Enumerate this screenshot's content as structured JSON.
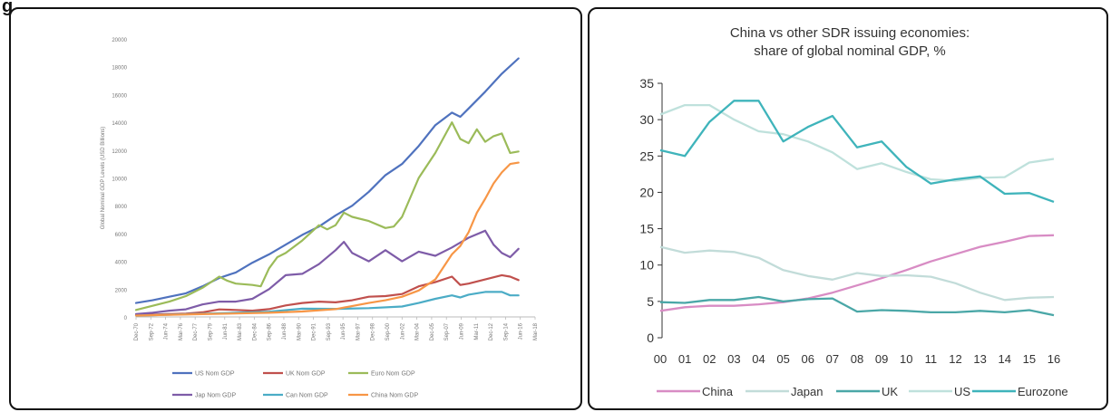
{
  "figure": {
    "caption": "g"
  },
  "chart_data": [
    {
      "type": "line",
      "title": "",
      "xlabel": "",
      "ylabel": "Global Nominal GDP Levels (USD Billions)",
      "ylim": [
        0,
        20000
      ],
      "yticks": [
        0,
        2000,
        4000,
        6000,
        8000,
        10000,
        12000,
        14000,
        16000,
        18000,
        20000
      ],
      "grid": false,
      "legend_position": "bottom",
      "categories": [
        "Dec-70",
        "Sep-72",
        "Jun-74",
        "Mar-76",
        "Dec-77",
        "Sep-79",
        "Jun-81",
        "Mar-83",
        "Dec-84",
        "Sep-86",
        "Jun-88",
        "Mar-90",
        "Dec-91",
        "Sep-93",
        "Jun-95",
        "Mar-97",
        "Dec-98",
        "Sep-00",
        "Jun-02",
        "Mar-04",
        "Dec-05",
        "Sep-07",
        "Jun-09",
        "Mar-11",
        "Dec-12",
        "Sep-14",
        "Jun-16",
        "Mar-18"
      ],
      "x_range": [
        1970,
        2018
      ],
      "series": [
        {
          "name": "US Nom GDP",
          "color": "#4f72be",
          "x": [
            1970,
            1972,
            1974,
            1976,
            1978,
            1980,
            1982,
            1984,
            1986,
            1988,
            1990,
            1992,
            1994,
            1996,
            1998,
            2000,
            2002,
            2004,
            2006,
            2008,
            2009,
            2010,
            2012,
            2014,
            2016
          ],
          "values": [
            1000,
            1200,
            1450,
            1700,
            2200,
            2800,
            3200,
            3900,
            4500,
            5200,
            5900,
            6500,
            7300,
            8000,
            9000,
            10200,
            11000,
            12300,
            13800,
            14700,
            14400,
            15000,
            16200,
            17500,
            18600
          ]
        },
        {
          "name": "UK Nom GDP",
          "color": "#c0504d",
          "x": [
            1970,
            1972,
            1974,
            1976,
            1978,
            1980,
            1982,
            1984,
            1986,
            1988,
            1990,
            1992,
            1994,
            1996,
            1998,
            2000,
            2002,
            2004,
            2006,
            2008,
            2009,
            2010,
            2012,
            2014,
            2015,
            2016
          ],
          "values": [
            130,
            160,
            200,
            240,
            330,
            540,
            500,
            450,
            560,
            830,
            1000,
            1100,
            1050,
            1200,
            1450,
            1500,
            1650,
            2200,
            2500,
            2900,
            2300,
            2400,
            2700,
            3000,
            2900,
            2650
          ]
        },
        {
          "name": "Euro Nom GDP",
          "color": "#9bbb59",
          "x": [
            1970,
            1972,
            1974,
            1976,
            1978,
            1980,
            1981,
            1982,
            1984,
            1985,
            1986,
            1987,
            1988,
            1990,
            1992,
            1993,
            1994,
            1995,
            1996,
            1998,
            2000,
            2001,
            2002,
            2004,
            2006,
            2008,
            2009,
            2010,
            2011,
            2012,
            2013,
            2014,
            2015,
            2016
          ],
          "values": [
            500,
            800,
            1100,
            1500,
            2100,
            2900,
            2600,
            2400,
            2300,
            2200,
            3500,
            4300,
            4600,
            5500,
            6600,
            6300,
            6600,
            7500,
            7200,
            6900,
            6400,
            6500,
            7200,
            10000,
            11800,
            14000,
            12800,
            12500,
            13500,
            12600,
            13000,
            13200,
            11800,
            11900
          ]
        },
        {
          "name": "Jap Nom GDP",
          "color": "#7e5ca8",
          "x": [
            1970,
            1972,
            1974,
            1976,
            1978,
            1980,
            1982,
            1984,
            1986,
            1988,
            1990,
            1992,
            1994,
            1995,
            1996,
            1998,
            2000,
            2002,
            2004,
            2006,
            2008,
            2010,
            2012,
            2013,
            2014,
            2015,
            2016
          ],
          "values": [
            200,
            300,
            450,
            550,
            900,
            1100,
            1100,
            1300,
            2000,
            3000,
            3100,
            3800,
            4800,
            5400,
            4600,
            4000,
            4800,
            4000,
            4700,
            4400,
            5000,
            5700,
            6200,
            5200,
            4600,
            4300,
            4900
          ]
        },
        {
          "name": "Can Nom GDP",
          "color": "#4bacc6",
          "x": [
            1970,
            1974,
            1978,
            1982,
            1986,
            1990,
            1994,
            1998,
            2002,
            2004,
            2006,
            2008,
            2009,
            2010,
            2012,
            2014,
            2015,
            2016
          ],
          "values": [
            90,
            160,
            230,
            300,
            380,
            590,
            580,
            630,
            750,
            1000,
            1300,
            1550,
            1400,
            1600,
            1800,
            1800,
            1550,
            1550
          ]
        },
        {
          "name": "China Nom GDP",
          "color": "#f79646",
          "x": [
            1970,
            1974,
            1978,
            1982,
            1986,
            1990,
            1994,
            1998,
            2000,
            2002,
            2004,
            2006,
            2008,
            2009,
            2010,
            2011,
            2012,
            2013,
            2014,
            2015,
            2016
          ],
          "values": [
            100,
            150,
            200,
            250,
            300,
            390,
            560,
            1000,
            1200,
            1450,
            1900,
            2700,
            4500,
            5100,
            6100,
            7500,
            8500,
            9600,
            10400,
            11000,
            11100
          ]
        }
      ]
    },
    {
      "type": "line",
      "title": "China vs other SDR issuing economies:",
      "subtitle": "share of global nominal GDP, %",
      "xlabel": "",
      "ylabel": "",
      "ylim": [
        0,
        35
      ],
      "yticks": [
        0,
        5,
        10,
        15,
        20,
        25,
        30,
        35
      ],
      "grid": false,
      "legend_position": "bottom",
      "categories": [
        "00",
        "01",
        "02",
        "03",
        "04",
        "05",
        "06",
        "07",
        "08",
        "09",
        "10",
        "11",
        "12",
        "13",
        "14",
        "15",
        "16"
      ],
      "series": [
        {
          "name": "China",
          "color": "#d88cc4",
          "values": [
            3.7,
            4.2,
            4.4,
            4.4,
            4.6,
            4.9,
            5.4,
            6.2,
            7.2,
            8.2,
            9.3,
            10.5,
            11.5,
            12.5,
            13.2,
            14.0,
            14.1
          ]
        },
        {
          "name": "Japan",
          "color": "#c2dcd9",
          "values": [
            12.5,
            11.7,
            12.0,
            11.8,
            11.0,
            9.3,
            8.5,
            8.0,
            8.9,
            8.5,
            8.6,
            8.4,
            7.5,
            6.2,
            5.2,
            5.5,
            5.6
          ]
        },
        {
          "name": "UK",
          "color": "#4aa7a7",
          "values": [
            4.9,
            4.8,
            5.2,
            5.2,
            5.6,
            5.0,
            5.3,
            5.4,
            3.6,
            3.8,
            3.7,
            3.5,
            3.5,
            3.7,
            3.5,
            3.8,
            3.1
          ]
        },
        {
          "name": "US",
          "color": "#bfe1dc",
          "values": [
            30.7,
            32.0,
            32.0,
            30.0,
            28.4,
            28.0,
            27.0,
            25.5,
            23.2,
            24.0,
            22.8,
            21.8,
            21.6,
            22.0,
            22.1,
            24.1,
            24.6
          ]
        },
        {
          "name": "Eurozone",
          "color": "#3fb4bb",
          "values": [
            25.8,
            25.0,
            29.7,
            32.6,
            32.6,
            27.0,
            29.0,
            30.5,
            26.2,
            27.0,
            23.5,
            21.2,
            21.8,
            22.2,
            19.8,
            19.9,
            18.7
          ]
        }
      ]
    }
  ]
}
